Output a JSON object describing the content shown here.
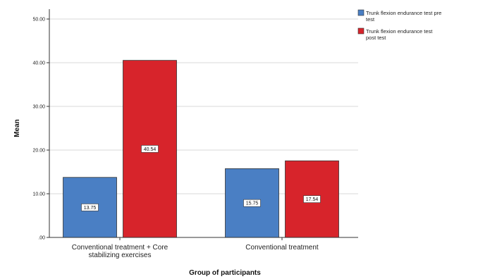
{
  "chart_data": {
    "type": "bar",
    "xlabel": "Group of participants",
    "ylabel": "Mean",
    "ylim": [
      0,
      50
    ],
    "yticks": [
      0,
      10,
      20,
      30,
      40,
      50
    ],
    "ytick_labels": [
      ".00",
      "10.00",
      "20.00",
      "30.00",
      "40.00",
      "50.00"
    ],
    "grid": true,
    "legend_position": "top-right",
    "categories": [
      [
        "Conventional treatment + Core",
        "stabilizing exercises"
      ],
      [
        "Conventional treatment"
      ]
    ],
    "series": [
      {
        "name": [
          "Trunk flexion endurance test pre",
          "test"
        ],
        "color": "#4a7fc4",
        "values": [
          13.75,
          15.75
        ],
        "labels": [
          "13.75",
          "15.75"
        ]
      },
      {
        "name": [
          "Trunk flexion endurance test",
          "post test"
        ],
        "color": "#d7242b",
        "values": [
          40.54,
          17.54
        ],
        "labels": [
          "40.54",
          "17.54"
        ]
      }
    ]
  }
}
